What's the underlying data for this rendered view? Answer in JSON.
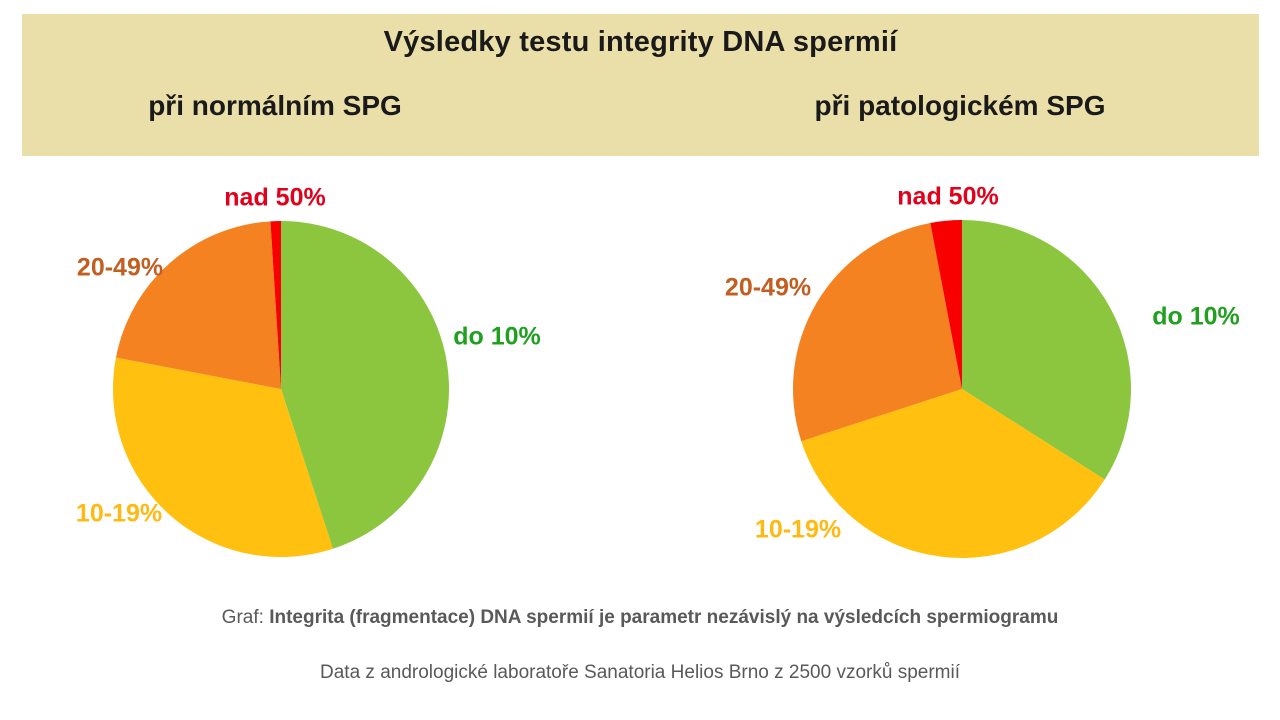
{
  "header": {
    "title": "Výsledky testu integrity DNA spermií",
    "left_subtitle": "při normálním SPG",
    "right_subtitle": "při patologickém SPG",
    "background_color": "#EADFA9"
  },
  "chart_data": [
    {
      "type": "pie",
      "title": "při normálním SPG",
      "labels": [
        "do 10%",
        "10-19%",
        "20-49%",
        "nad 50%"
      ],
      "values": [
        45,
        33,
        21,
        1
      ],
      "unit": "% of samples",
      "slice_colors": [
        "#8CC63F",
        "#FFC010",
        "#F58220",
        "#F80000"
      ],
      "label_colors": [
        "#1FA01F",
        "#FEB913",
        "#C15E20",
        "#E2001A"
      ],
      "start_angle_deg": 0,
      "direction": "clockwise",
      "legend_position": "around-pie"
    },
    {
      "type": "pie",
      "title": "při patologickém SPG",
      "labels": [
        "do 10%",
        "10-19%",
        "20-49%",
        "nad 50%"
      ],
      "values": [
        34,
        36,
        27,
        3
      ],
      "unit": "% of samples",
      "slice_colors": [
        "#8CC63F",
        "#FFC010",
        "#F58220",
        "#F80000"
      ],
      "label_colors": [
        "#1FA01F",
        "#FEB913",
        "#C15E20",
        "#E2001A"
      ],
      "start_angle_deg": 0,
      "direction": "clockwise",
      "legend_position": "around-pie"
    }
  ],
  "captions": {
    "line1_prefix": "Graf: ",
    "line1_bold": "Integrita (fragmentace) DNA spermií je parametr nezávislý na výsledcích spermiogramu",
    "line2": "Data z andrologické laboratoře Sanatoria Helios Brno z 2500 vzorků spermií",
    "text_color": "#595959"
  }
}
